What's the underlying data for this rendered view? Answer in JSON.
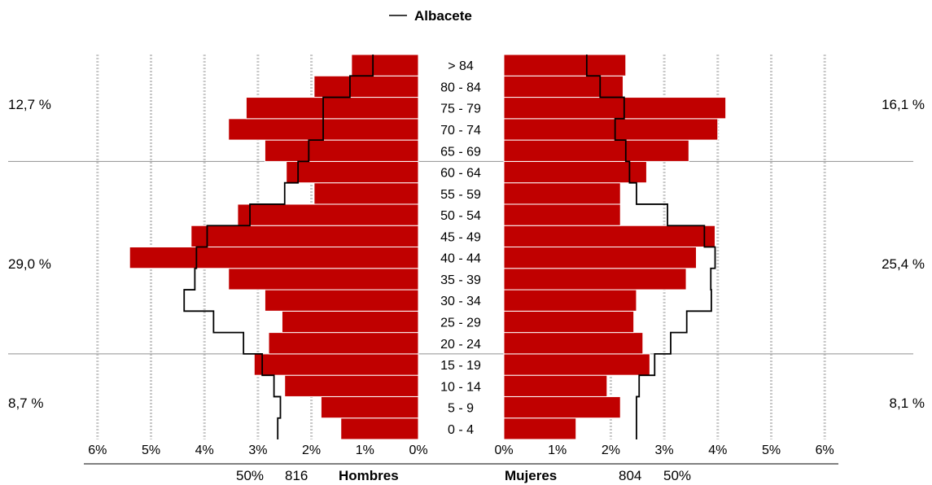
{
  "chart_data": {
    "type": "bar",
    "orientation": "horizontal-population-pyramid",
    "legend": {
      "label": "Albacete",
      "placement": "top-center"
    },
    "categories": [
      "0 - 4",
      "5 - 9",
      "10 - 14",
      "15 - 19",
      "20 - 24",
      "25 - 29",
      "30 - 34",
      "35 - 39",
      "40 - 44",
      "45 - 49",
      "50 - 54",
      "55 - 59",
      "60 - 64",
      "65 - 69",
      "70 - 74",
      "75 - 79",
      "80 - 84",
      "> 84"
    ],
    "series": [
      {
        "side": "left",
        "values": [
          1.45,
          1.82,
          2.5,
          3.07,
          2.8,
          2.55,
          2.87,
          3.55,
          5.4,
          4.25,
          3.38,
          1.95,
          2.47,
          2.87,
          3.55,
          3.22,
          1.95,
          1.25
        ],
        "color": "#c00000"
      },
      {
        "side": "right",
        "values": [
          1.35,
          2.18,
          1.93,
          2.73,
          2.6,
          2.43,
          2.48,
          3.41,
          3.6,
          3.95,
          2.18,
          2.18,
          2.67,
          3.46,
          4.0,
          4.15,
          2.23,
          2.28
        ],
        "color": "#c00000"
      }
    ],
    "reference_line": {
      "name": "Albacete",
      "left_values": [
        2.63,
        2.58,
        2.7,
        2.92,
        3.27,
        3.83,
        4.38,
        4.18,
        4.15,
        3.95,
        3.15,
        2.5,
        2.25,
        2.05,
        1.78,
        1.78,
        1.28,
        0.85
      ],
      "right_values": [
        2.48,
        2.48,
        2.53,
        2.82,
        3.12,
        3.42,
        3.88,
        3.87,
        3.95,
        3.75,
        3.06,
        2.48,
        2.35,
        2.28,
        2.08,
        2.25,
        1.8,
        1.55
      ],
      "color": "#000000"
    },
    "xlim": [
      0,
      6
    ],
    "ticks": [
      "0%",
      "1%",
      "2%",
      "3%",
      "4%",
      "5%",
      "6%"
    ],
    "grid": true,
    "group_labels": {
      "left": [
        "8,7  %",
        "29,0  %",
        "12,7  %"
      ],
      "right": [
        "8,1  %",
        "25,4  %",
        "16,1  %"
      ]
    },
    "footer": {
      "left_pct": "50%",
      "left_count": "816",
      "left_label": "Hombres",
      "right_label": "Mujeres",
      "right_count": "804",
      "right_pct": "50%"
    }
  }
}
